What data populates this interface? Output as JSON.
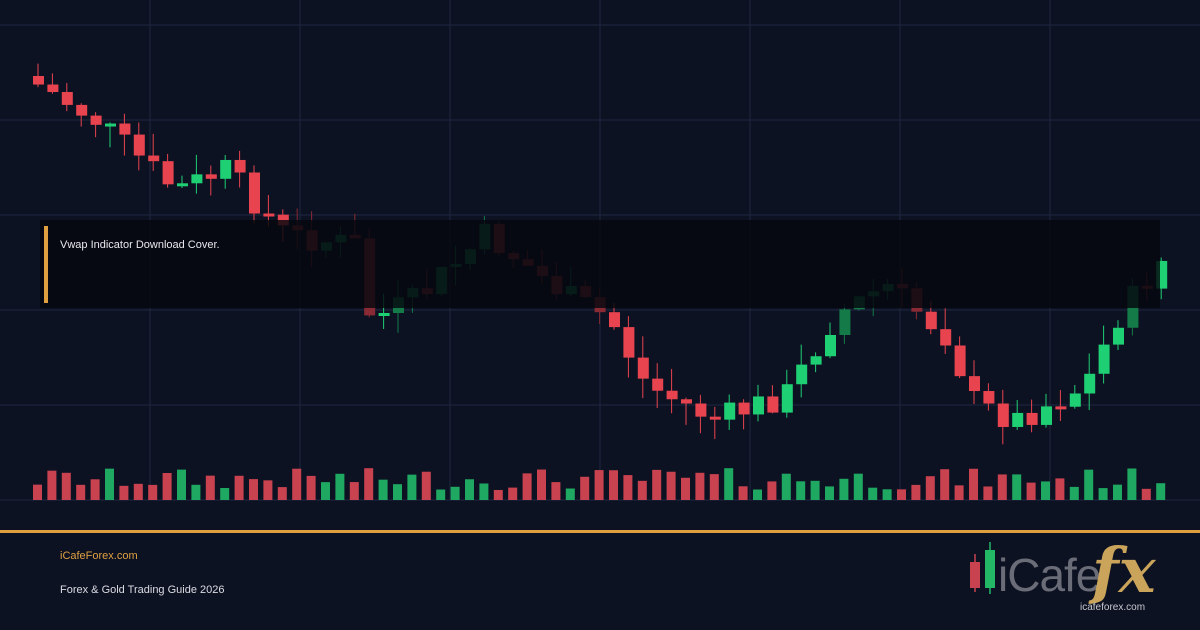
{
  "overlay": {
    "title": "Vwap Indicator Download Cover."
  },
  "footer": {
    "site": "iCafeForex.com",
    "subtitle": "Forex & Gold Trading Guide 2026"
  },
  "logo": {
    "word": "iCafe",
    "accent": "fx",
    "url": "icafeforex.com"
  }
}
